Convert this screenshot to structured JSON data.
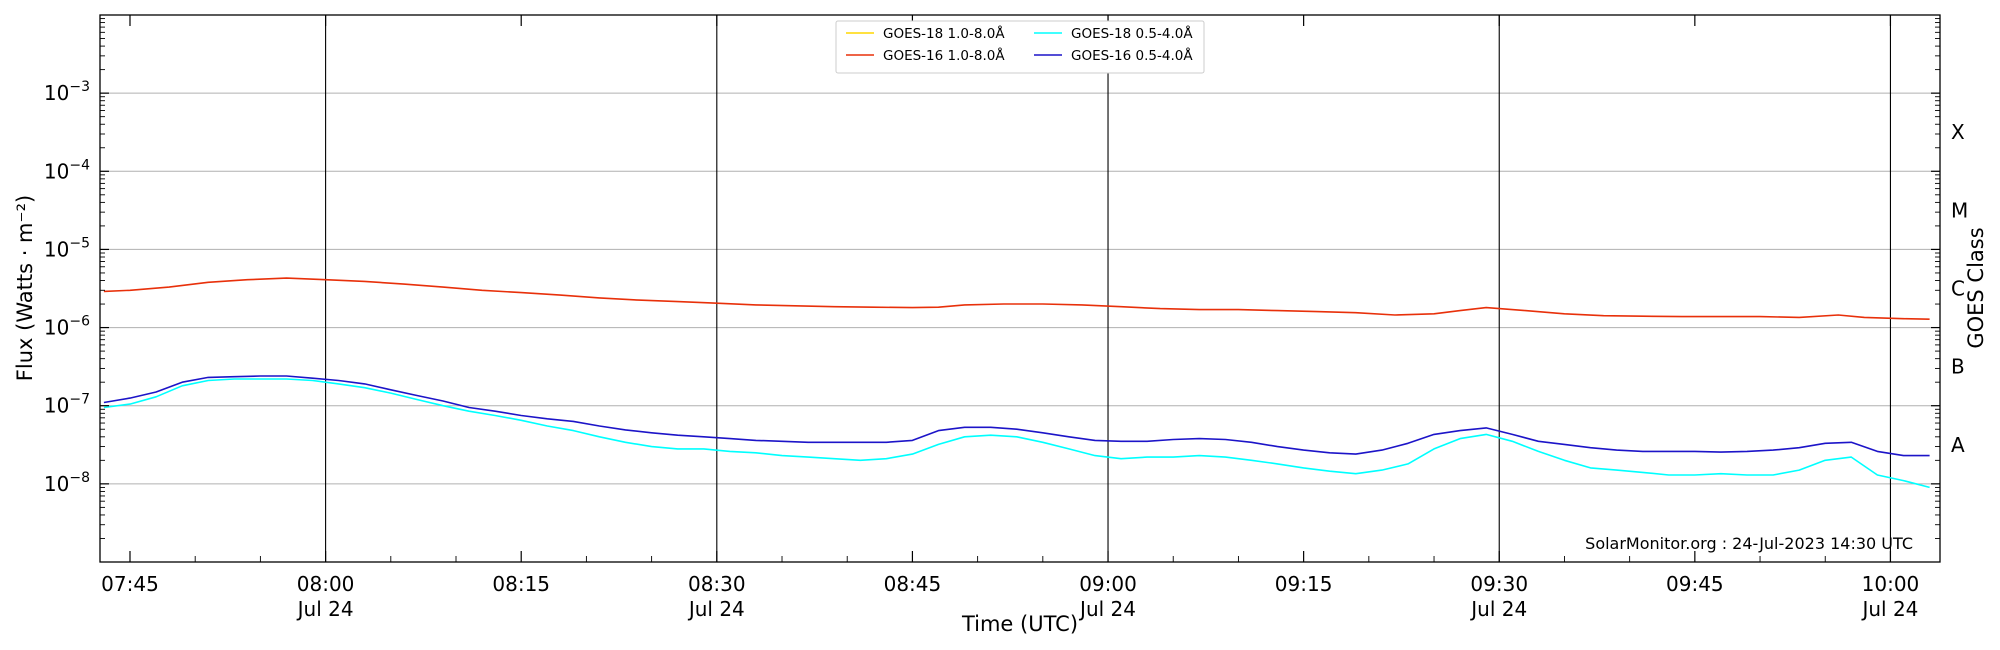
{
  "chart_data": {
    "type": "line",
    "title": "",
    "xlabel": "Time (UTC)",
    "ylabel": "Flux (Watts · m⁻²)",
    "y2label": "GOES Class",
    "yscale": "log",
    "ylim": [
      1e-09,
      0.01
    ],
    "xlim": [
      "07:43",
      "10:04"
    ],
    "x_unit": "minutes after 07:45 UTC on 24-Jul-2023",
    "grid": "horizontal",
    "legend_position": "top-center",
    "credit": "SolarMonitor.org : 24-Jul-2023 14:30 UTC",
    "x_ticks": [
      {
        "t": 0,
        "label": "07:45",
        "sub": ""
      },
      {
        "t": 15,
        "label": "08:00",
        "sub": "Jul 24"
      },
      {
        "t": 30,
        "label": "08:15",
        "sub": ""
      },
      {
        "t": 45,
        "label": "08:30",
        "sub": "Jul 24"
      },
      {
        "t": 60,
        "label": "08:45",
        "sub": ""
      },
      {
        "t": 75,
        "label": "09:00",
        "sub": "Jul 24"
      },
      {
        "t": 90,
        "label": "09:15",
        "sub": ""
      },
      {
        "t": 105,
        "label": "09:30",
        "sub": "Jul 24"
      },
      {
        "t": 120,
        "label": "09:45",
        "sub": ""
      },
      {
        "t": 135,
        "label": "10:00",
        "sub": "Jul 24"
      }
    ],
    "y_ticks": [
      {
        "exp": -8,
        "label": "10",
        "sup": "−8"
      },
      {
        "exp": -7,
        "label": "10",
        "sup": "−7"
      },
      {
        "exp": -6,
        "label": "10",
        "sup": "−6"
      },
      {
        "exp": -5,
        "label": "10",
        "sup": "−5"
      },
      {
        "exp": -4,
        "label": "10",
        "sup": "−4"
      },
      {
        "exp": -3,
        "label": "10",
        "sup": "−3"
      }
    ],
    "goes_classes": [
      {
        "label": "A",
        "exp": -7.5
      },
      {
        "label": "B",
        "exp": -6.5
      },
      {
        "label": "C",
        "exp": -5.5
      },
      {
        "label": "M",
        "exp": -4.5
      },
      {
        "label": "X",
        "exp": -3.5
      }
    ],
    "vlines": [
      15,
      45,
      75,
      105,
      135
    ],
    "series": [
      {
        "name": "GOES-18 1.0-8.0Å",
        "color": "#ffd700",
        "x": [],
        "values": []
      },
      {
        "name": "GOES-16 1.0-8.0Å",
        "color": "#e8300a",
        "x": [
          -2,
          0,
          3,
          6,
          9,
          12,
          15,
          18,
          21,
          24,
          27,
          30,
          33,
          36,
          39,
          42,
          45,
          48,
          51,
          54,
          57,
          60,
          62,
          64,
          67,
          70,
          73,
          76,
          79,
          82,
          85,
          88,
          91,
          94,
          97,
          100,
          102,
          104,
          107,
          110,
          113,
          116,
          119,
          122,
          125,
          128,
          131,
          133,
          136,
          138
        ],
        "values": [
          2.9e-06,
          3e-06,
          3.3e-06,
          3.8e-06,
          4.1e-06,
          4.3e-06,
          4.1e-06,
          3.9e-06,
          3.6e-06,
          3.3e-06,
          3e-06,
          2.8e-06,
          2.6e-06,
          2.4e-06,
          2.25e-06,
          2.15e-06,
          2.05e-06,
          1.95e-06,
          1.9e-06,
          1.85e-06,
          1.82e-06,
          1.8e-06,
          1.82e-06,
          1.95e-06,
          2e-06,
          2e-06,
          1.95e-06,
          1.85e-06,
          1.75e-06,
          1.7e-06,
          1.7e-06,
          1.65e-06,
          1.6e-06,
          1.55e-06,
          1.45e-06,
          1.5e-06,
          1.65e-06,
          1.8e-06,
          1.65e-06,
          1.5e-06,
          1.42e-06,
          1.4e-06,
          1.38e-06,
          1.38e-06,
          1.38e-06,
          1.35e-06,
          1.45e-06,
          1.35e-06,
          1.3e-06,
          1.28e-06
        ]
      },
      {
        "name": "GOES-18 0.5-4.0Å",
        "color": "#00ffff",
        "x": [
          -2,
          0,
          2,
          4,
          6,
          8,
          10,
          12,
          14,
          16,
          18,
          20,
          22,
          24,
          26,
          28,
          30,
          32,
          34,
          36,
          38,
          40,
          42,
          44,
          46,
          48,
          50,
          52,
          54,
          56,
          58,
          60,
          62,
          64,
          66,
          68,
          70,
          72,
          74,
          76,
          78,
          80,
          82,
          84,
          86,
          88,
          90,
          92,
          94,
          96,
          98,
          100,
          102,
          104,
          106,
          108,
          110,
          112,
          114,
          116,
          118,
          120,
          122,
          124,
          126,
          128,
          130,
          132,
          134,
          136,
          138
        ],
        "values": [
          9.5e-08,
          1.05e-07,
          1.3e-07,
          1.8e-07,
          2.1e-07,
          2.2e-07,
          2.2e-07,
          2.2e-07,
          2.1e-07,
          1.9e-07,
          1.7e-07,
          1.45e-07,
          1.2e-07,
          1e-07,
          8.5e-08,
          7.5e-08,
          6.5e-08,
          5.5e-08,
          4.8e-08,
          4e-08,
          3.4e-08,
          3e-08,
          2.8e-08,
          2.8e-08,
          2.6e-08,
          2.5e-08,
          2.3e-08,
          2.2e-08,
          2.1e-08,
          2e-08,
          2.1e-08,
          2.4e-08,
          3.2e-08,
          4e-08,
          4.2e-08,
          4e-08,
          3.4e-08,
          2.8e-08,
          2.3e-08,
          2.1e-08,
          2.2e-08,
          2.2e-08,
          2.3e-08,
          2.2e-08,
          2e-08,
          1.8e-08,
          1.6e-08,
          1.45e-08,
          1.35e-08,
          1.5e-08,
          1.8e-08,
          2.8e-08,
          3.8e-08,
          4.3e-08,
          3.5e-08,
          2.6e-08,
          2e-08,
          1.6e-08,
          1.5e-08,
          1.4e-08,
          1.3e-08,
          1.3e-08,
          1.35e-08,
          1.3e-08,
          1.3e-08,
          1.5e-08,
          2e-08,
          2.2e-08,
          1.3e-08,
          1.1e-08,
          9e-09
        ]
      },
      {
        "name": "GOES-16 0.5-4.0Å",
        "color": "#1c14c8",
        "x": [
          -2,
          0,
          2,
          4,
          6,
          8,
          10,
          12,
          14,
          16,
          18,
          20,
          22,
          24,
          26,
          28,
          30,
          32,
          34,
          36,
          38,
          40,
          42,
          44,
          46,
          48,
          50,
          52,
          54,
          56,
          58,
          60,
          62,
          64,
          66,
          68,
          70,
          72,
          74,
          76,
          78,
          80,
          82,
          84,
          86,
          88,
          90,
          92,
          94,
          96,
          98,
          100,
          102,
          104,
          106,
          108,
          110,
          112,
          114,
          116,
          118,
          120,
          122,
          124,
          126,
          128,
          130,
          132,
          134,
          136,
          138
        ],
        "values": [
          1.1e-07,
          1.25e-07,
          1.5e-07,
          2e-07,
          2.3e-07,
          2.35e-07,
          2.4e-07,
          2.4e-07,
          2.25e-07,
          2.1e-07,
          1.9e-07,
          1.6e-07,
          1.35e-07,
          1.15e-07,
          9.5e-08,
          8.5e-08,
          7.5e-08,
          6.8e-08,
          6.3e-08,
          5.5e-08,
          4.9e-08,
          4.5e-08,
          4.2e-08,
          4e-08,
          3.8e-08,
          3.6e-08,
          3.5e-08,
          3.4e-08,
          3.4e-08,
          3.4e-08,
          3.4e-08,
          3.6e-08,
          4.8e-08,
          5.3e-08,
          5.3e-08,
          5e-08,
          4.5e-08,
          4e-08,
          3.6e-08,
          3.5e-08,
          3.5e-08,
          3.7e-08,
          3.8e-08,
          3.7e-08,
          3.4e-08,
          3e-08,
          2.7e-08,
          2.5e-08,
          2.4e-08,
          2.7e-08,
          3.3e-08,
          4.3e-08,
          4.8e-08,
          5.2e-08,
          4.3e-08,
          3.5e-08,
          3.2e-08,
          2.9e-08,
          2.7e-08,
          2.6e-08,
          2.6e-08,
          2.6e-08,
          2.55e-08,
          2.6e-08,
          2.7e-08,
          2.9e-08,
          3.3e-08,
          3.4e-08,
          2.6e-08,
          2.3e-08,
          2.3e-08
        ]
      }
    ]
  }
}
